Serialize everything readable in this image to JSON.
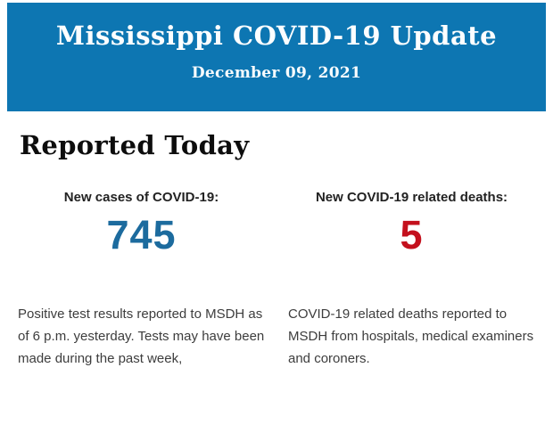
{
  "header": {
    "title": "Mississippi COVID-19 Update",
    "date": "December 09, 2021",
    "background_color": "#0d76b2",
    "text_color": "#fcfeff"
  },
  "section": {
    "title": "Reported Today"
  },
  "stats": {
    "cases": {
      "label": "New cases of COVID-19:",
      "value": "745",
      "value_color": "#1c6b9e",
      "description": "Positive test results reported to MSDH as of 6 p.m. yesterday. Tests may have been made during the past week,"
    },
    "deaths": {
      "label": "New COVID-19 related deaths:",
      "value": "5",
      "value_color": "#c4101d",
      "description": "COVID-19 related deaths reported to MSDH from hospitals, medical examiners and coroners."
    }
  }
}
